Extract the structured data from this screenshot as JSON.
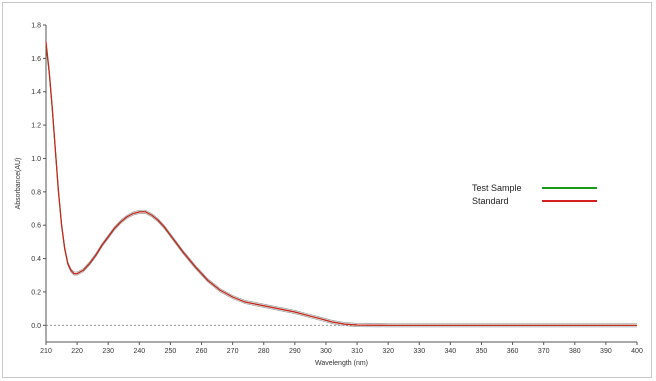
{
  "chart_data": {
    "type": "line",
    "title": "",
    "xlabel": "Wavelength (nm)",
    "ylabel": "Absorbance(AU)",
    "xlim": [
      210,
      400
    ],
    "ylim": [
      -0.1,
      1.8
    ],
    "xticks": [
      210,
      220,
      230,
      240,
      250,
      260,
      270,
      280,
      290,
      300,
      310,
      320,
      330,
      340,
      350,
      360,
      370,
      380,
      390,
      400
    ],
    "xtick_labels": [
      "210",
      "220",
      "230",
      "240",
      "250",
      "260",
      "270",
      "280",
      "290",
      "300",
      "310",
      "320",
      "330",
      "340",
      "350",
      "360",
      "370",
      "380",
      "390",
      "400"
    ],
    "yticks": [
      0.0,
      0.2,
      0.4,
      0.6,
      0.8,
      1.0,
      1.2,
      1.4,
      1.6,
      1.8
    ],
    "ytick_labels": [
      "0.0",
      "0.2",
      "0.4",
      "0.6",
      "0.8",
      "1.0",
      "1.2",
      "1.4",
      "1.6",
      "1.8"
    ],
    "baseline": 0.0,
    "legend_position": "right",
    "x": [
      210,
      211,
      212,
      213,
      214,
      215,
      216,
      217,
      218,
      219,
      220,
      222,
      224,
      226,
      228,
      230,
      232,
      234,
      236,
      238,
      240,
      242,
      244,
      246,
      248,
      250,
      254,
      258,
      262,
      266,
      270,
      274,
      278,
      282,
      286,
      290,
      294,
      298,
      302,
      306,
      310,
      320,
      340,
      360,
      380,
      400
    ],
    "series": [
      {
        "name": "Test Sample",
        "color": "#1a9a1a",
        "values": [
          1.68,
          1.52,
          1.3,
          1.05,
          0.8,
          0.6,
          0.46,
          0.37,
          0.33,
          0.31,
          0.31,
          0.33,
          0.37,
          0.42,
          0.48,
          0.53,
          0.58,
          0.62,
          0.65,
          0.67,
          0.68,
          0.68,
          0.66,
          0.63,
          0.59,
          0.54,
          0.44,
          0.35,
          0.27,
          0.21,
          0.17,
          0.14,
          0.125,
          0.11,
          0.095,
          0.08,
          0.06,
          0.04,
          0.02,
          0.007,
          0.002,
          0.0,
          0.0,
          0.0,
          0.0,
          0.0
        ]
      },
      {
        "name": "Standard",
        "color": "#d42020",
        "values": [
          1.7,
          1.53,
          1.31,
          1.06,
          0.81,
          0.6,
          0.46,
          0.37,
          0.33,
          0.31,
          0.31,
          0.33,
          0.37,
          0.42,
          0.48,
          0.53,
          0.58,
          0.62,
          0.65,
          0.67,
          0.68,
          0.68,
          0.66,
          0.63,
          0.59,
          0.54,
          0.44,
          0.35,
          0.27,
          0.21,
          0.17,
          0.14,
          0.125,
          0.11,
          0.095,
          0.08,
          0.06,
          0.04,
          0.02,
          0.007,
          0.002,
          0.0,
          0.0,
          0.0,
          0.0,
          0.0
        ]
      }
    ]
  }
}
